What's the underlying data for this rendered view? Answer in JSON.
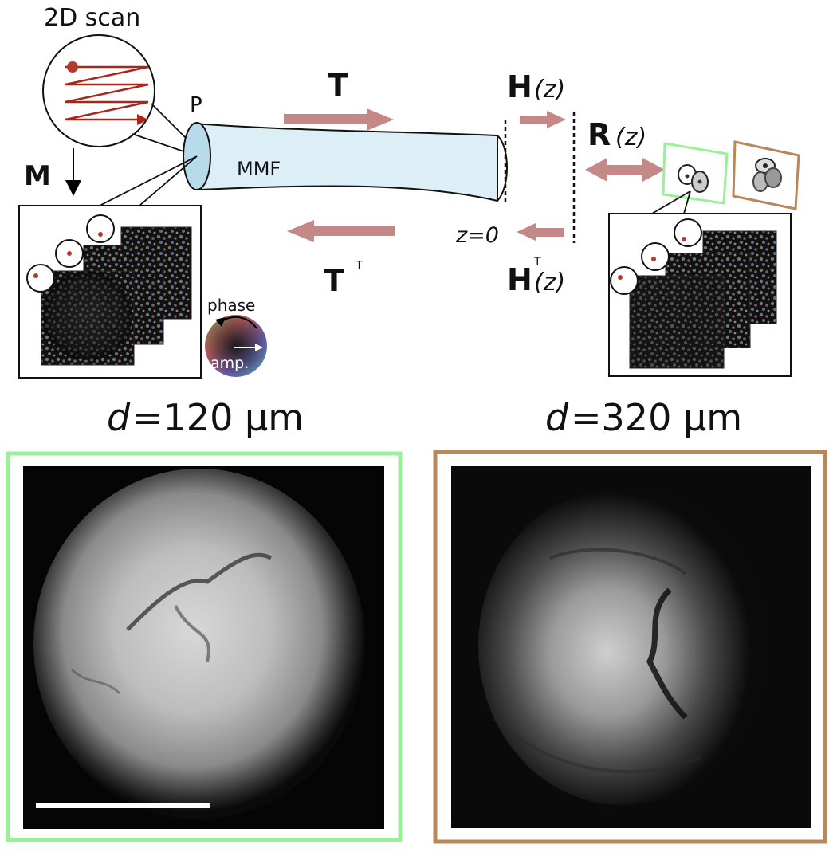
{
  "labels": {
    "scan": "2D scan",
    "proximal": "P",
    "fiber": "MMF",
    "measured": "M",
    "forward": "T",
    "backward": "T",
    "backward_sup": "T",
    "prop_sym": "H",
    "prop_arg": "(z)",
    "prop_back_sup": "T",
    "refl_sym": "R",
    "refl_arg": "(z)",
    "z_zero": "z=0",
    "phase": "phase",
    "amp": "amp."
  },
  "panels": [
    {
      "depth_var": "d",
      "depth_rest": "=120 µm",
      "frame_color": "#98f098"
    },
    {
      "depth_var": "d",
      "depth_rest": "=320 µm",
      "frame_color": "#b8875a"
    }
  ],
  "colors": {
    "arrow": "#c48886",
    "scan_line": "#a4281c",
    "fiber_fill": "#dceef6",
    "fiber_end": "#b7dbe8",
    "plane_green": "#98f098",
    "plane_brown": "#b8875a"
  }
}
